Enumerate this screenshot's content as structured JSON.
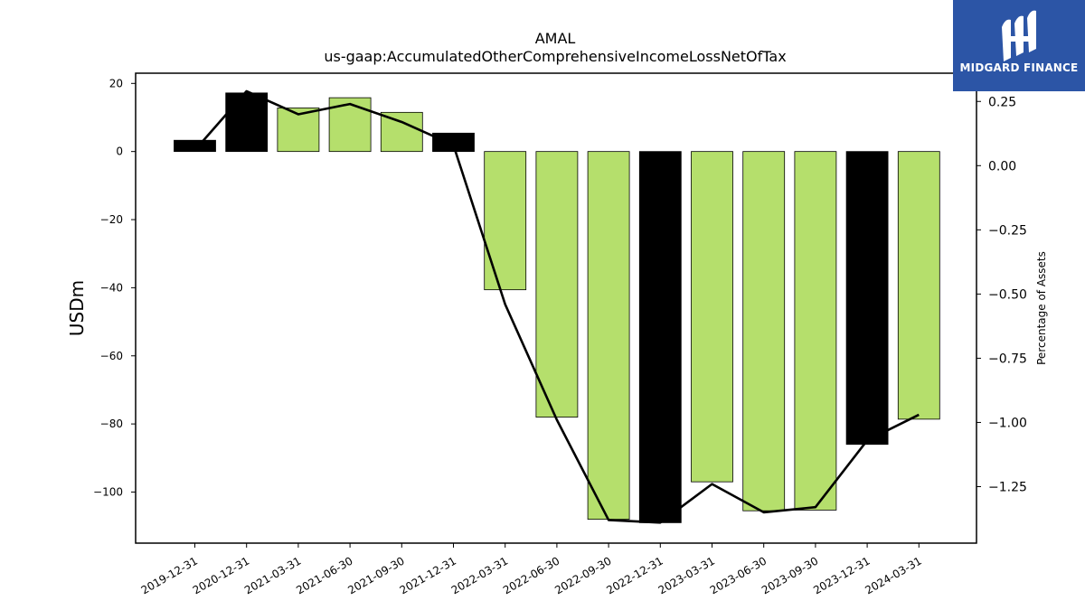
{
  "brand": {
    "name": "MIDGARD FINANCE",
    "background_color": "#2c55a6"
  },
  "chart_data": {
    "type": "bar",
    "title": "AMAL",
    "subtitle": "us-gaap:AccumulatedOtherComprehensiveIncomeLossNetOfTax",
    "ylabel": "USDm",
    "y2label": "Percentage of Assets",
    "categories": [
      "2019-12-31",
      "2020-12-31",
      "2021-03-31",
      "2021-06-30",
      "2021-09-30",
      "2021-12-31",
      "2022-03-31",
      "2022-06-30",
      "2022-09-30",
      "2022-12-31",
      "2023-03-31",
      "2023-06-30",
      "2023-09-30",
      "2023-12-31",
      "2024-03-31"
    ],
    "bar_values": [
      3.3,
      17.2,
      12.8,
      15.8,
      11.5,
      5.4,
      -40.6,
      -78.0,
      -108.0,
      -109.0,
      -97.0,
      -105.5,
      -105.3,
      -86.0,
      -78.6
    ],
    "bar_colors": [
      "#000000",
      "#000000",
      "#b5df6c",
      "#b5df6c",
      "#b5df6c",
      "#000000",
      "#b5df6c",
      "#b5df6c",
      "#b5df6c",
      "#000000",
      "#b5df6c",
      "#b5df6c",
      "#b5df6c",
      "#000000",
      "#b5df6c"
    ],
    "line_values": [
      0.06,
      0.29,
      0.2,
      0.24,
      0.17,
      0.08,
      -0.54,
      -0.99,
      -1.38,
      -1.39,
      -1.24,
      -1.35,
      -1.33,
      -1.07,
      -0.97
    ],
    "ylim": [
      -115,
      23
    ],
    "y2lim": [
      -1.47,
      0.36
    ],
    "yticks": [
      20,
      0,
      -20,
      -40,
      -60,
      -80,
      -100
    ],
    "y2ticks": [
      0.25,
      0.0,
      -0.25,
      -0.5,
      -0.75,
      -1.0,
      -1.25
    ],
    "ytick_labels": [
      "20",
      "0",
      "−20",
      "−40",
      "−60",
      "−80",
      "−100"
    ],
    "y2tick_labels": [
      "0.25",
      "0.00",
      "−0.25",
      "−0.50",
      "−0.75",
      "−1.00",
      "−1.25"
    ],
    "grid": false,
    "legend": "none"
  }
}
